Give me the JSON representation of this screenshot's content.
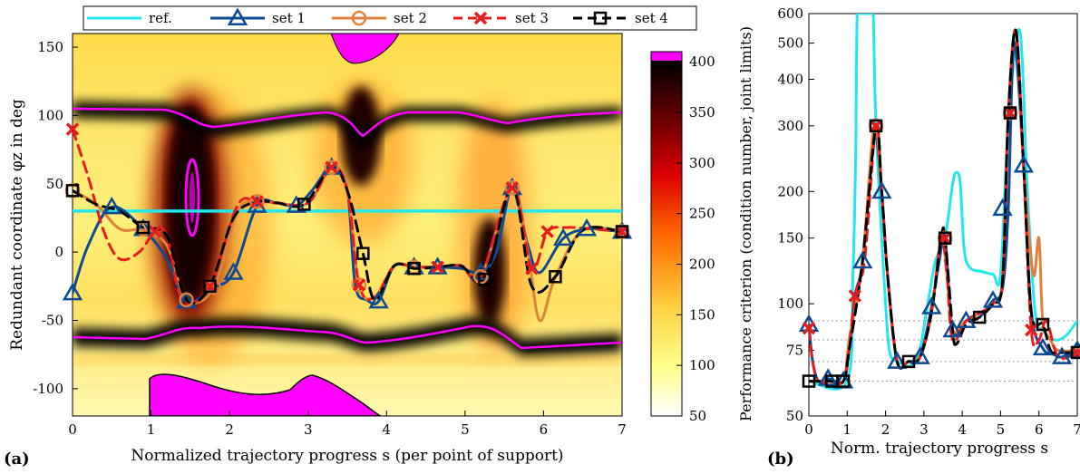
{
  "panel_a_label": "(a)",
  "panel_b_label": "(b)",
  "chart_data": [
    {
      "type": "heatmap",
      "panel": "a",
      "xlabel": "Normalized trajectory progress s (per point of support)",
      "ylabel": "Redundant coordinate φz in deg",
      "xlim": [
        0,
        7
      ],
      "ylim": [
        -120,
        160
      ],
      "xticks": [
        "0",
        "1",
        "2",
        "3",
        "4",
        "5",
        "6",
        "7"
      ],
      "yticks": [
        "-100",
        "-50",
        "0",
        "50",
        "100",
        "150"
      ],
      "colorbar": {
        "ticks": [
          "50",
          "100",
          "150",
          "200",
          "250",
          "300",
          "350",
          "400"
        ],
        "range": [
          50,
          410
        ],
        "colors": [
          "#ffffff",
          "#ffff66",
          "#ffcc33",
          "#ff6600",
          "#e00000",
          "#700000",
          "#000000",
          "#ff00ff"
        ]
      },
      "legend": {
        "position": "top",
        "entries": [
          "ref.",
          "set 1",
          "set 2",
          "set 3",
          "set 4"
        ]
      },
      "series": [
        {
          "name": "ref.",
          "color": "#22e8ee",
          "marker": "none",
          "dash": "solid",
          "x": [
            0,
            7
          ],
          "y": [
            30,
            30
          ]
        },
        {
          "name": "set 1",
          "color": "#0d4a94",
          "marker": "triangle",
          "dash": "solid",
          "x": [
            0,
            0.2,
            0.5,
            0.9,
            1.2,
            1.45,
            1.8,
            2.05,
            2.35,
            2.6,
            2.85,
            3.05,
            3.3,
            3.5,
            3.6,
            3.75,
            3.9,
            4.1,
            4.35,
            4.65,
            4.95,
            5.2,
            5.4,
            5.6,
            5.8,
            5.95,
            6.25,
            6.55,
            6.8,
            7.0
          ],
          "y": [
            -30,
            5,
            33,
            17,
            -5,
            -36,
            -26,
            -15,
            34,
            36,
            34,
            45,
            62,
            45,
            -24,
            -35,
            -36,
            -10,
            -11,
            -11,
            -12,
            -15,
            0,
            47,
            5,
            -15,
            10,
            17,
            16,
            15
          ],
          "marker_x": [
            0,
            0.5,
            0.9,
            1.45,
            2.05,
            2.35,
            2.85,
            3.3,
            3.9,
            4.35,
            4.65,
            5.2,
            5.6,
            6.25,
            6.55,
            7.0
          ],
          "marker_y": [
            -30,
            33,
            17,
            -36,
            -15,
            34,
            34,
            62,
            -36,
            -11,
            -11,
            -15,
            47,
            10,
            17,
            15
          ]
        },
        {
          "name": "set 2",
          "color": "#e0813a",
          "marker": "circle",
          "dash": "solid",
          "x": [
            0,
            0.3,
            0.6,
            0.9,
            1.2,
            1.45,
            1.8,
            2.1,
            2.35,
            2.6,
            3.0,
            3.3,
            3.5,
            3.65,
            3.85,
            4.1,
            4.35,
            4.65,
            4.95,
            5.2,
            5.6,
            5.8,
            5.95,
            6.15,
            6.5,
            7.0
          ],
          "y": [
            45,
            35,
            17,
            16,
            5,
            -35,
            -26,
            30,
            37,
            36,
            36,
            62,
            45,
            -24,
            -33,
            -10,
            -11,
            -11,
            -10,
            -18,
            47,
            0,
            -50,
            -18,
            16,
            15
          ],
          "marker_x": [
            0,
            0.9,
            1.45,
            1.8,
            2.35,
            3.3,
            3.65,
            4.35,
            5.2,
            5.6,
            7.0
          ],
          "marker_y": [
            45,
            17,
            -35,
            -26,
            37,
            62,
            -24,
            -11,
            -18,
            47,
            15
          ]
        },
        {
          "name": "set 3",
          "color": "#e81c1c",
          "marker": "x",
          "dash": "dashed",
          "x": [
            0,
            0.2,
            0.4,
            0.6,
            0.85,
            1.05,
            1.2,
            1.4,
            1.75,
            2.1,
            2.35,
            2.6,
            3.0,
            3.3,
            3.5,
            3.65,
            3.85,
            4.1,
            4.35,
            4.65,
            4.95,
            5.2,
            5.6,
            5.85,
            6.05,
            6.3,
            6.6,
            7.0
          ],
          "y": [
            90,
            55,
            15,
            -5,
            0,
            15,
            12,
            -35,
            -25,
            34,
            37,
            36,
            36,
            62,
            45,
            -24,
            -33,
            -10,
            -11,
            -11,
            -10,
            -18,
            47,
            -12,
            15,
            18,
            17,
            15
          ],
          "marker_x": [
            0,
            1.05,
            1.75,
            2.35,
            3.3,
            3.65,
            4.65,
            5.6,
            5.85,
            6.05,
            7.0
          ],
          "marker_y": [
            90,
            15,
            -25,
            37,
            62,
            -24,
            -11,
            47,
            -12,
            15,
            15
          ]
        },
        {
          "name": "set 4",
          "color": "#000000",
          "marker": "square",
          "dash": "dashed",
          "x": [
            0,
            0.3,
            0.6,
            0.9,
            1.2,
            1.45,
            1.75,
            2.05,
            2.35,
            2.6,
            2.95,
            3.3,
            3.5,
            3.7,
            3.85,
            4.1,
            4.35,
            4.65,
            4.95,
            5.25,
            5.6,
            5.85,
            6.15,
            6.5,
            7.0
          ],
          "y": [
            45,
            35,
            30,
            18,
            12,
            -35,
            -25,
            25,
            37,
            36,
            35,
            62,
            45,
            -1,
            -35,
            -10,
            -12,
            -11,
            -10,
            -20,
            47,
            -25,
            -18,
            16,
            15
          ],
          "marker_x": [
            0,
            0.9,
            1.75,
            2.95,
            3.7,
            4.35,
            5.25,
            6.15,
            7.0
          ],
          "marker_y": [
            45,
            18,
            -25,
            35,
            -1,
            -12,
            -20,
            -18,
            15
          ]
        }
      ]
    },
    {
      "type": "line",
      "panel": "b",
      "xlabel": "Norm. trajectory progress s",
      "ylabel": "Performance criterion (condition number, joint limits)",
      "xlim": [
        0,
        7
      ],
      "ylim": [
        50,
        600
      ],
      "yscale": "log",
      "xticks": [
        "0",
        "1",
        "2",
        "3",
        "4",
        "5",
        "6",
        "7"
      ],
      "yticks": [
        "50",
        "75",
        "100",
        "150",
        "200",
        "300",
        "400",
        "500",
        "600"
      ],
      "reference_levels": [
        62,
        70,
        80,
        90
      ],
      "series": [
        {
          "name": "ref.",
          "color": "#22e8ee",
          "marker": "none",
          "dash": "solid",
          "x": [
            0,
            1.0,
            1.15,
            1.22,
            1.26,
            1.35,
            1.5,
            1.64,
            1.68,
            1.75,
            1.9,
            2.0,
            2.1,
            2.3,
            2.8,
            3.1,
            3.3,
            3.55,
            3.75,
            3.85,
            3.95,
            4.05,
            4.2,
            4.5,
            4.8,
            5.0,
            5.2,
            5.5,
            5.7,
            5.9,
            6.1,
            6.4,
            6.7,
            7.0
          ],
          "y": [
            62,
            62,
            120,
            250,
            600,
            600,
            600,
            600,
            600,
            300,
            150,
            100,
            75,
            70,
            70,
            100,
            130,
            150,
            210,
            225,
            210,
            140,
            125,
            122,
            120,
            120,
            300,
            540,
            200,
            95,
            85,
            80,
            82,
            90
          ]
        },
        {
          "name": "set 1",
          "color": "#0d4a94",
          "marker": "triangle",
          "dash": "solid",
          "x": [
            0,
            0.1,
            0.25,
            0.5,
            0.9,
            1.05,
            1.2,
            1.4,
            1.7,
            1.9,
            2.05,
            2.3,
            2.6,
            2.9,
            3.2,
            3.4,
            3.55,
            3.75,
            4.1,
            4.45,
            4.8,
            5.05,
            5.2,
            5.35,
            5.6,
            5.8,
            6.1,
            6.4,
            6.6,
            7.0
          ],
          "y": [
            88,
            70,
            62,
            63,
            62,
            75,
            105,
            130,
            280,
            200,
            120,
            70,
            70,
            72,
            98,
            130,
            150,
            85,
            90,
            92,
            102,
            110,
            180,
            500,
            235,
            95,
            76,
            73,
            72,
            75
          ],
          "marker_x": [
            0,
            0.5,
            0.9,
            1.4,
            1.9,
            2.3,
            2.9,
            3.2,
            3.75,
            4.1,
            4.8,
            5.05,
            5.6,
            6.1,
            6.6,
            7.0
          ],
          "marker_y": [
            88,
            63,
            62,
            130,
            200,
            70,
            72,
            98,
            85,
            90,
            102,
            180,
            235,
            76,
            72,
            75
          ]
        },
        {
          "name": "set 2",
          "color": "#e0813a",
          "marker": "circle",
          "dash": "solid",
          "x": [
            0,
            0.5,
            0.9,
            1.05,
            1.4,
            1.7,
            1.9,
            2.05,
            2.3,
            2.6,
            2.9,
            3.2,
            3.45,
            3.6,
            3.75,
            4.1,
            4.5,
            4.8,
            5.05,
            5.2,
            5.4,
            5.6,
            5.85,
            6.0,
            6.1,
            6.3,
            6.5,
            7.0
          ],
          "y": [
            62,
            62,
            62,
            80,
            130,
            300,
            200,
            120,
            70,
            70,
            72,
            95,
            150,
            120,
            85,
            90,
            95,
            100,
            115,
            320,
            540,
            235,
            120,
            150,
            90,
            80,
            75,
            75
          ],
          "marker_x": [
            1.75,
            3.55,
            5.25
          ],
          "marker_y": [
            300,
            150,
            325
          ]
        },
        {
          "name": "set 3",
          "color": "#e81c1c",
          "marker": "x",
          "dash": "dashed",
          "x": [
            0,
            0.1,
            0.25,
            0.6,
            0.9,
            1.05,
            1.2,
            1.45,
            1.75,
            1.9,
            2.05,
            2.3,
            2.6,
            2.9,
            3.2,
            3.45,
            3.6,
            3.75,
            4.1,
            4.5,
            4.8,
            5.05,
            5.2,
            5.4,
            5.6,
            5.8,
            6.0,
            6.2,
            6.5,
            7.0
          ],
          "y": [
            86,
            70,
            62,
            62,
            62,
            75,
            105,
            130,
            300,
            200,
            120,
            70,
            70,
            72,
            95,
            150,
            120,
            80,
            90,
            95,
            100,
            115,
            320,
            540,
            235,
            85,
            80,
            90,
            72,
            74
          ],
          "marker_x": [
            0,
            1.2,
            1.75,
            3.55,
            5.25,
            5.8,
            7.0
          ],
          "marker_y": [
            86,
            105,
            300,
            150,
            325,
            85,
            74
          ]
        },
        {
          "name": "set 4",
          "color": "#000000",
          "marker": "square",
          "dash": "dashed",
          "x": [
            0,
            0.3,
            0.6,
            0.9,
            1.05,
            1.4,
            1.75,
            1.9,
            2.05,
            2.3,
            2.6,
            2.9,
            3.2,
            3.45,
            3.55,
            3.75,
            3.85,
            4.1,
            4.45,
            4.8,
            5.05,
            5.2,
            5.4,
            5.6,
            5.8,
            6.1,
            6.3,
            6.5,
            7.0
          ],
          "y": [
            62,
            62,
            62,
            62,
            75,
            130,
            300,
            200,
            120,
            70,
            70,
            72,
            95,
            150,
            150,
            85,
            78,
            88,
            92,
            100,
            115,
            320,
            540,
            235,
            95,
            88,
            75,
            74,
            74
          ],
          "marker_x": [
            0,
            0.6,
            0.9,
            1.75,
            2.6,
            3.55,
            4.45,
            5.25,
            6.1,
            7.0
          ],
          "marker_y": [
            62,
            62,
            62,
            300,
            70,
            150,
            92,
            325,
            88,
            74
          ]
        }
      ]
    }
  ]
}
